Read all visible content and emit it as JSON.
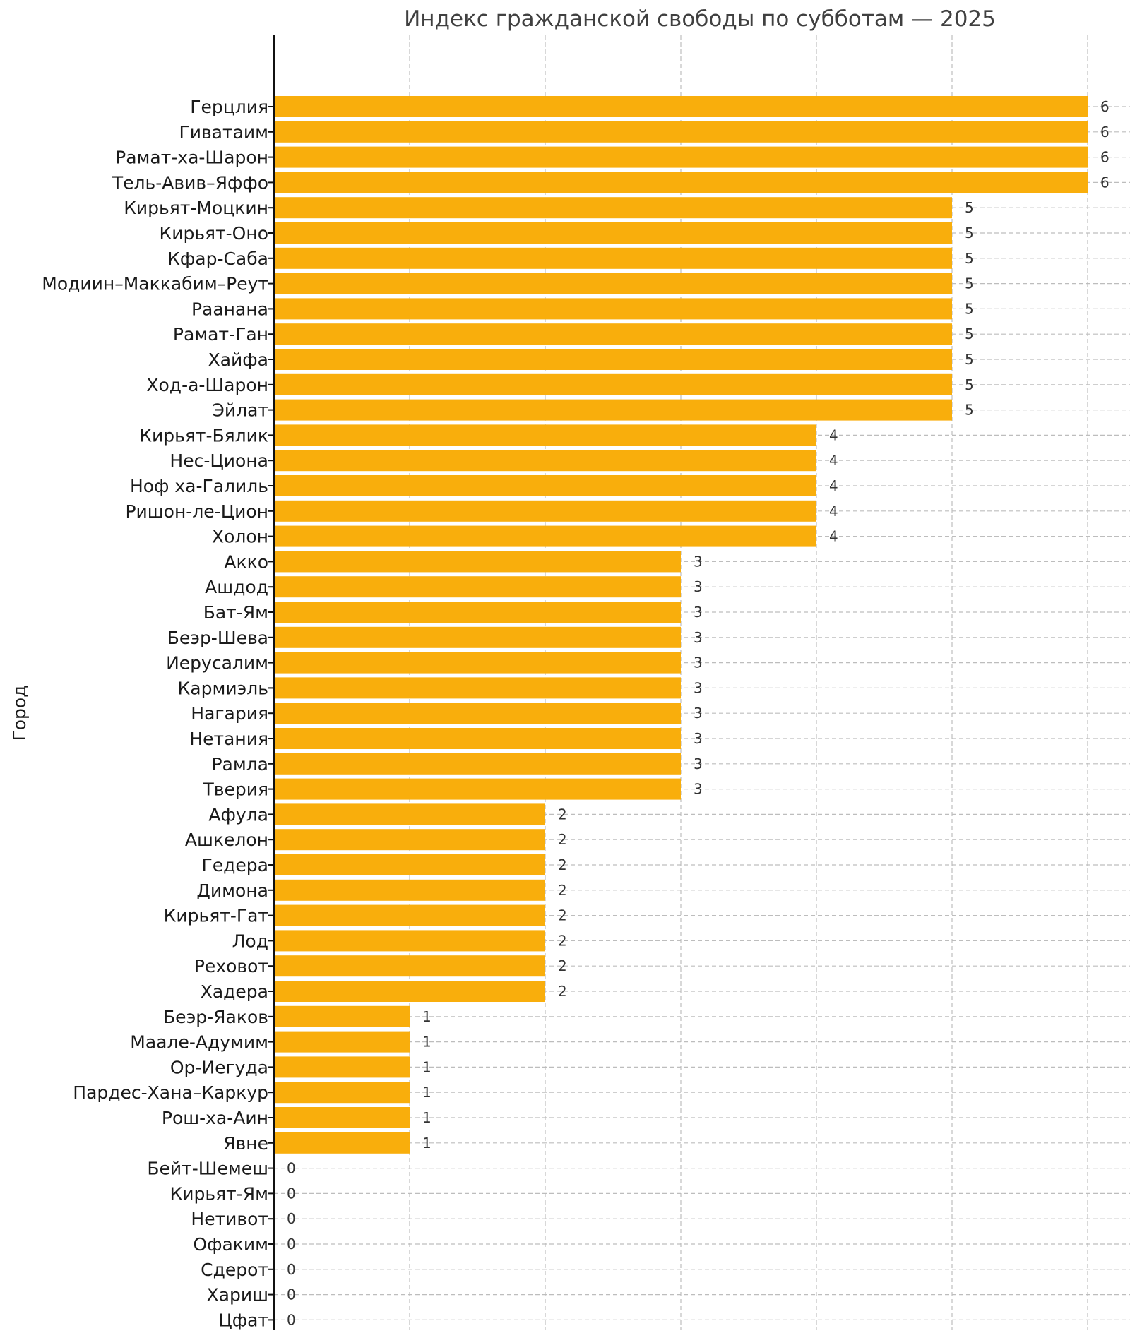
{
  "chart_data": {
    "type": "bar",
    "orientation": "horizontal",
    "title": "Индекс гражданской свободы по субботам — 2025",
    "xlabel": "",
    "ylabel": "Город",
    "xlim": [
      0,
      6.3
    ],
    "xgrid_ticks": [
      0,
      1,
      2,
      3,
      4,
      5,
      6
    ],
    "grid": true,
    "bar_color": "#F9AE0C",
    "categories": [
      "Герцлия",
      "Гиватаим",
      "Рамат-ха-Шарон",
      "Тель-Авив–Яффо",
      "Кирьят-Моцкин",
      "Кирьят-Оно",
      "Кфар-Саба",
      "Модиин–Маккабим–Реут",
      "Раанана",
      "Рамат-Ган",
      "Хайфа",
      "Ход-а-Шарон",
      "Эйлат",
      "Кирьят-Бялик",
      "Нес-Циона",
      "Ноф ха-Галиль",
      "Ришон-ле-Цион",
      "Холон",
      "Акко",
      "Ашдод",
      "Бат-Ям",
      "Беэр-Шева",
      "Иерусалим",
      "Кармиэль",
      "Нагария",
      "Нетания",
      "Рамла",
      "Тверия",
      "Афула",
      "Ашкелон",
      "Гедера",
      "Димона",
      "Кирьят-Гат",
      "Лод",
      "Реховот",
      "Хадера",
      "Беэр-Яаков",
      "Маале-Адумим",
      "Ор-Иегуда",
      "Пардес-Хана–Каркур",
      "Рош-ха-Аин",
      "Явне",
      "Бейт-Шемеш",
      "Кирьят-Ям",
      "Нетивот",
      "Офаким",
      "Сдерот",
      "Хариш",
      "Цфат"
    ],
    "values": [
      6,
      6,
      6,
      6,
      5,
      5,
      5,
      5,
      5,
      5,
      5,
      5,
      5,
      4,
      4,
      4,
      4,
      4,
      3,
      3,
      3,
      3,
      3,
      3,
      3,
      3,
      3,
      3,
      2,
      2,
      2,
      2,
      2,
      2,
      2,
      2,
      1,
      1,
      1,
      1,
      1,
      1,
      0,
      0,
      0,
      0,
      0,
      0,
      0
    ]
  }
}
